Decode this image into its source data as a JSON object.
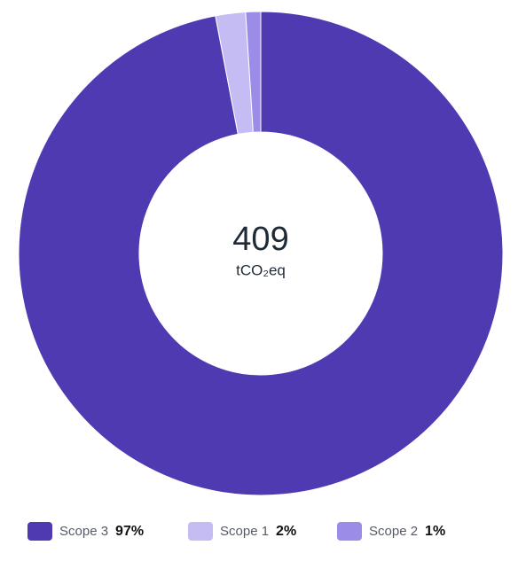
{
  "chart_data": {
    "type": "pie",
    "center_value": 409,
    "center_unit": "tCO₂eq",
    "categories": [
      "Scope 3",
      "Scope 1",
      "Scope 2"
    ],
    "values": [
      97,
      2,
      1
    ],
    "value_labels": [
      "97%",
      "2%",
      "1%"
    ],
    "colors": [
      "#4f3ab2",
      "#c4bcf3",
      "#9b8ce8"
    ]
  }
}
